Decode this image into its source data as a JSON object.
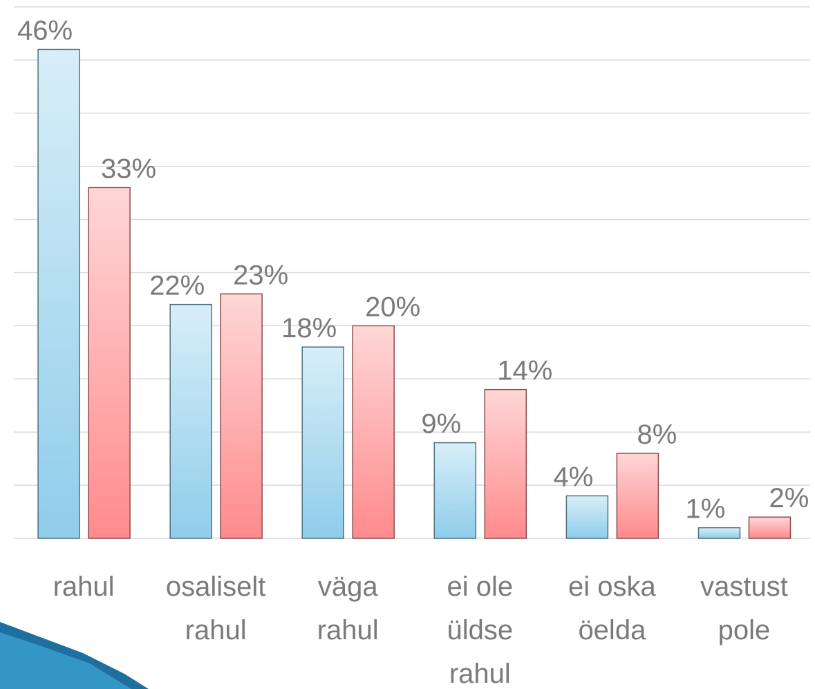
{
  "chart_data": {
    "type": "bar",
    "categories": [
      "rahul",
      "osaliselt\nrahul",
      "väga\nrahul",
      "ei ole\nüldse\nrahul",
      "ei oska\nöelda",
      "vastust\npole"
    ],
    "series": [
      {
        "color": "#8fcdea",
        "values": [
          46,
          22,
          18,
          9,
          4,
          1
        ],
        "value_labels": [
          "46%",
          "22%",
          "18%",
          "9%",
          "4%",
          "1%"
        ]
      },
      {
        "color": "#ff8a8c",
        "values": [
          33,
          23,
          20,
          14,
          8,
          2
        ],
        "value_labels": [
          "33%",
          "23%",
          "20%",
          "14%",
          "8%",
          "2%"
        ]
      }
    ],
    "ylim": [
      0,
      50
    ],
    "yticks": [
      0,
      5,
      10,
      15,
      20,
      25,
      30,
      35,
      40,
      45,
      50
    ],
    "grid": true
  }
}
